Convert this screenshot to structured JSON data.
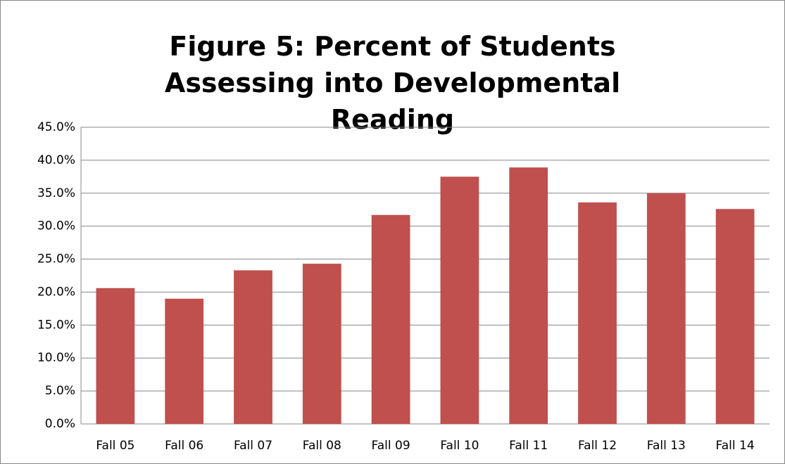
{
  "chart_data": {
    "type": "bar",
    "title": "Figure 5: Percent of Students Assessing into Developmental Reading",
    "categories": [
      "Fall 05",
      "Fall 06",
      "Fall 07",
      "Fall 08",
      "Fall 09",
      "Fall 10",
      "Fall 11",
      "Fall 12",
      "Fall 13",
      "Fall 14"
    ],
    "values": [
      20.6,
      19.0,
      23.3,
      24.3,
      31.7,
      37.5,
      38.9,
      33.6,
      35.0,
      32.6
    ],
    "color": "#c0504d",
    "ylim": [
      0,
      45
    ],
    "yticks": [
      {
        "value": 0,
        "label": "0.0%"
      },
      {
        "value": 5,
        "label": "5.0%"
      },
      {
        "value": 10,
        "label": "10.0%"
      },
      {
        "value": 15,
        "label": "15.0%"
      },
      {
        "value": 20,
        "label": "20.0%"
      },
      {
        "value": 25,
        "label": "25.0%"
      },
      {
        "value": 30,
        "label": "30.0%"
      },
      {
        "value": 35,
        "label": "35.0%"
      },
      {
        "value": 40,
        "label": "40.0%"
      },
      {
        "value": 45,
        "label": "45.0%"
      }
    ],
    "grid": true
  }
}
